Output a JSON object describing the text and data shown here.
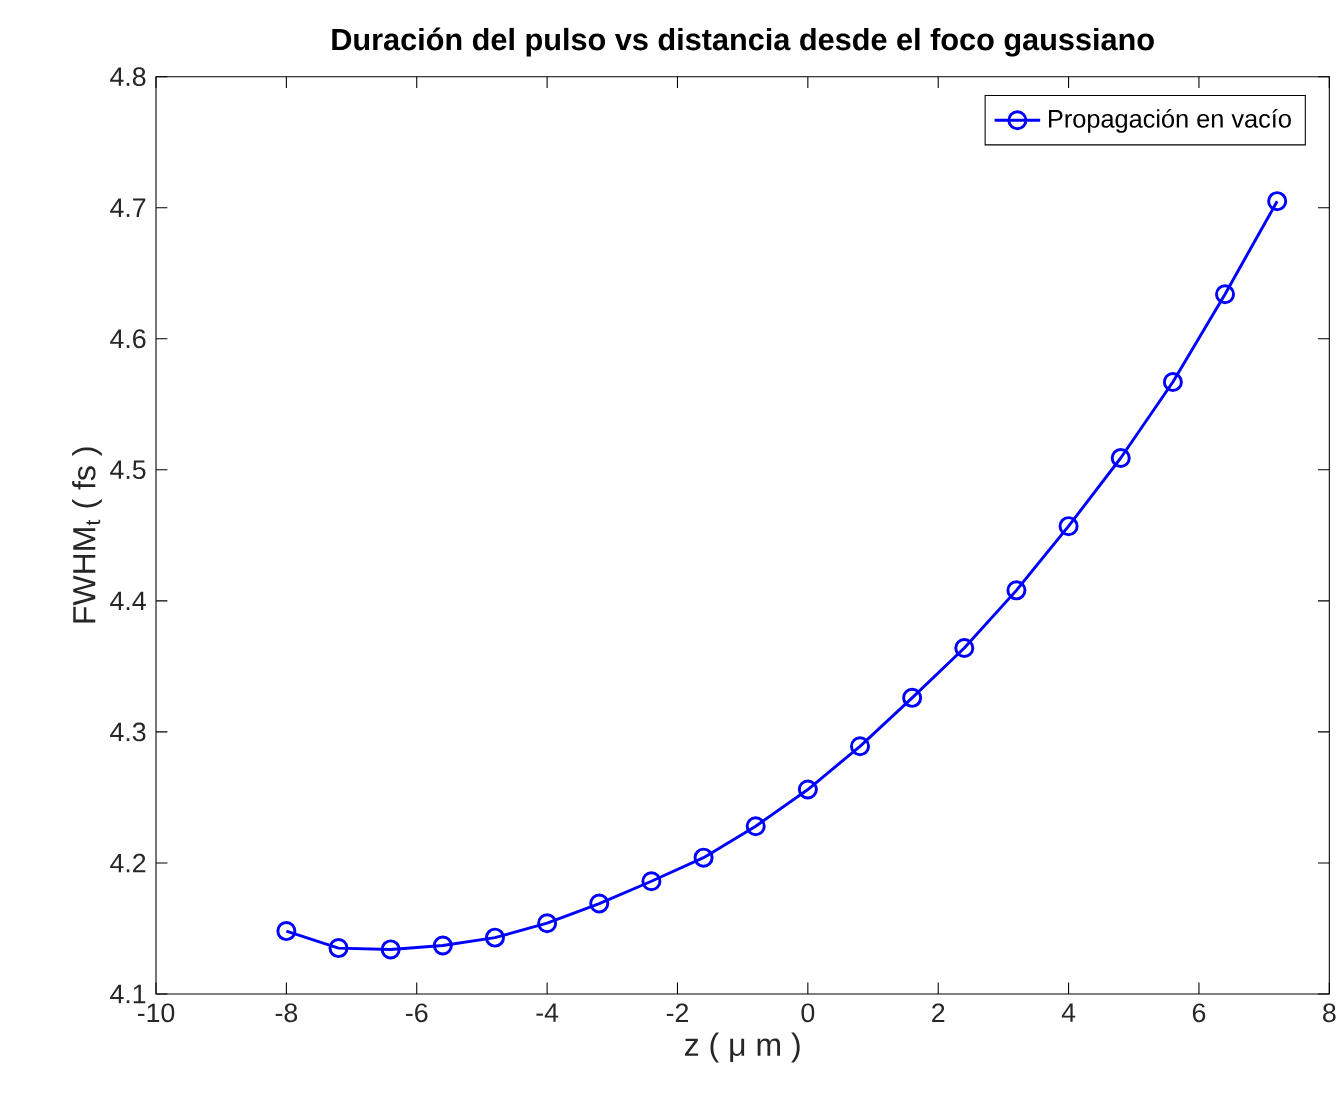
{
  "chart_data": {
    "type": "line",
    "title": "Duración del pulso vs distancia desde el foco gaussiano",
    "xlabel": "z ( μ m )",
    "ylabel": "FWHM$_{t}$ ( fs )",
    "x": [
      -8,
      -7.2,
      -6.4,
      -5.6,
      -4.8,
      -4,
      -3.2,
      -2.4,
      -1.6,
      -0.8,
      0,
      0.8,
      1.6,
      2.4,
      3.2,
      4,
      4.8,
      5.6,
      6.4,
      7.2
    ],
    "series": [
      {
        "name": "Propagación en vacío",
        "color": "#0000ff",
        "values": [
          4.148,
          4.135,
          4.134,
          4.137,
          4.143,
          4.154,
          4.169,
          4.186,
          4.204,
          4.228,
          4.256,
          4.289,
          4.326,
          4.364,
          4.408,
          4.457,
          4.509,
          4.567,
          4.634,
          4.705
        ]
      }
    ],
    "xlim": [
      -10,
      8
    ],
    "xticks": [
      -10,
      -8,
      -6,
      -4,
      -2,
      0,
      2,
      4,
      6,
      8
    ],
    "ylim": [
      4.1,
      4.8
    ],
    "yticks": [
      4.1,
      4.2,
      4.3,
      4.4,
      4.5,
      4.6,
      4.7,
      4.8
    ],
    "grid": false,
    "legend": "top right",
    "marker": "circle",
    "line_style": "solid"
  }
}
